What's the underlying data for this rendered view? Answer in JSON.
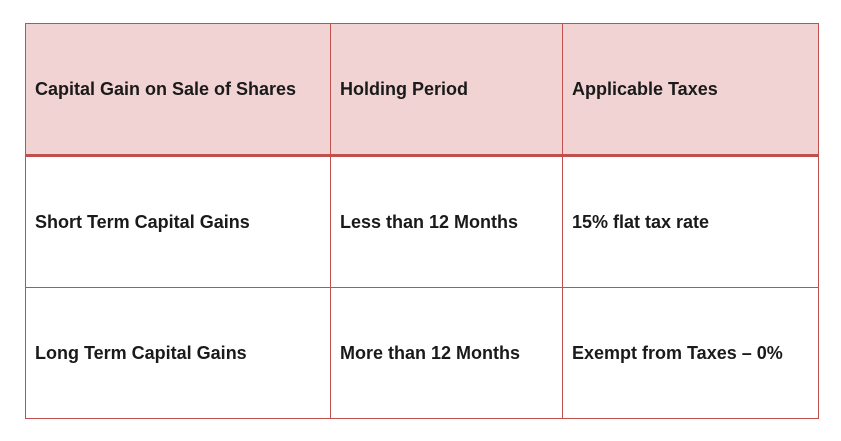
{
  "table": {
    "headers": [
      "Capital Gain on Sale of Shares",
      "Holding Period",
      "Applicable Taxes"
    ],
    "rows": [
      [
        "Short Term Capital Gains",
        "Less than 12 Months",
        "15% flat tax rate"
      ],
      [
        "Long Term Capital Gains",
        "More than 12 Months",
        "Exempt from Taxes – 0%"
      ]
    ]
  },
  "colors": {
    "border": "#c0504d",
    "header_background": "#f2d3d3",
    "body_background": "#ffffff",
    "text": "#1a1a1a"
  }
}
